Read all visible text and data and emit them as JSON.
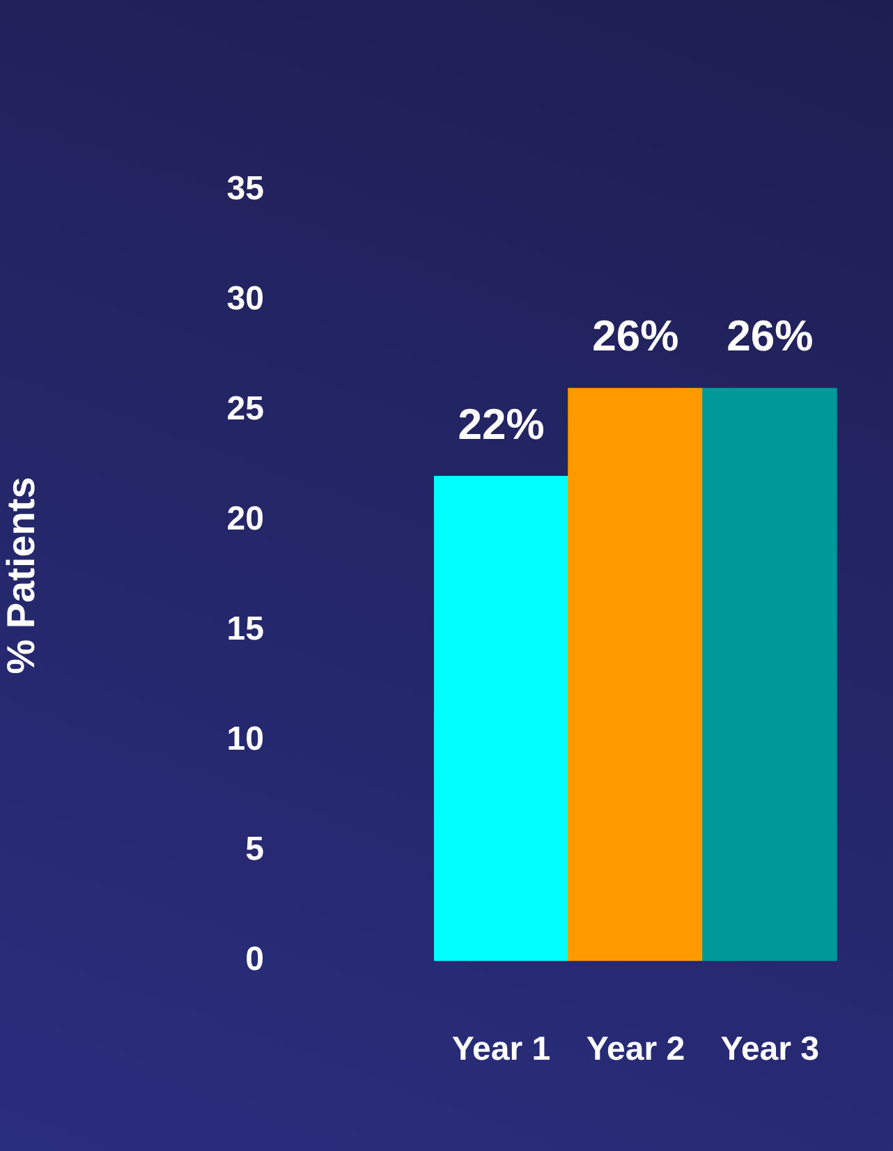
{
  "chart_data": {
    "type": "bar",
    "ylabel": "% Patients",
    "categories": [
      "Year 1",
      "Year 2",
      "Year 3"
    ],
    "values": [
      22,
      26,
      26
    ],
    "colors": [
      "#00ffff",
      "#ff9900",
      "#009999"
    ],
    "value_labels": [
      "22%",
      "26%",
      "26%"
    ],
    "ylim": [
      0,
      35
    ],
    "yticks": [
      0,
      5,
      10,
      15,
      20,
      25,
      30,
      35
    ],
    "grid": false,
    "legend": false
  }
}
